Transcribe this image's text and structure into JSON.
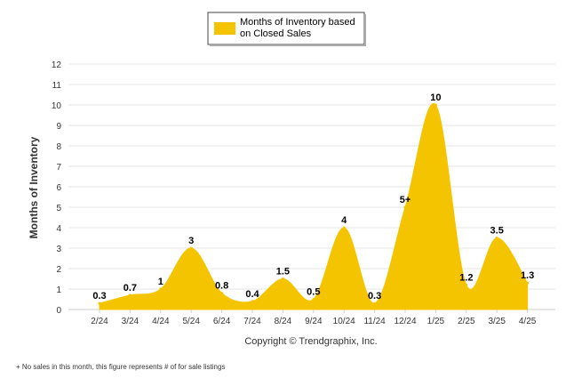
{
  "chart_data": {
    "type": "area",
    "ylabel": "Months of Inventory",
    "ylim": [
      0,
      12
    ],
    "yticks": [
      "0",
      "1",
      "2",
      "3",
      "4",
      "5",
      "6",
      "7",
      "8",
      "9",
      "10",
      "11",
      "12"
    ],
    "categories": [
      "2/24",
      "3/24",
      "4/24",
      "5/24",
      "6/24",
      "7/24",
      "8/24",
      "9/24",
      "10/24",
      "11/24",
      "12/24",
      "1/25",
      "2/25",
      "3/25",
      "4/25"
    ],
    "series": [
      {
        "name": "Months of Inventory based on Closed Sales",
        "values": [
          0.3,
          0.7,
          1,
          3,
          0.8,
          0.4,
          1.5,
          0.5,
          4,
          0.3,
          5,
          10,
          1.2,
          3.5,
          1.3
        ],
        "labels": [
          "0.3",
          "0.7",
          "1",
          "3",
          "0.8",
          "0.4",
          "1.5",
          "0.5",
          "4",
          "0.3",
          "5+",
          "10",
          "1.2",
          "3.5",
          "1.3"
        ],
        "color": "#F5C400"
      }
    ],
    "legend": {
      "position": "top-center",
      "lines": [
        "Months of Inventory based",
        "on Closed Sales"
      ]
    },
    "grid": true
  },
  "copyright": "Copyright © Trendgraphix, Inc.",
  "footnote": "+  No sales in this month, this figure represents # of for sale listings",
  "colors": {
    "fill": "#F5C400",
    "grid": "#E6E6E6",
    "axis": "#CCCCCC"
  }
}
